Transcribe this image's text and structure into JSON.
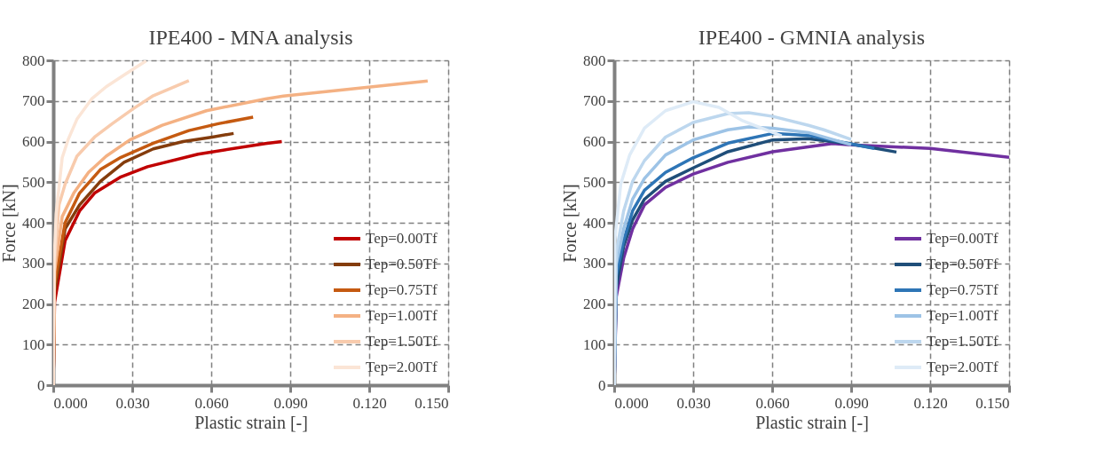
{
  "chart_data": [
    {
      "type": "line",
      "title": "IPE400 - MNA analysis",
      "xlabel": "Plastic strain [-]",
      "ylabel": "Force [kN]",
      "xlim": [
        0,
        0.15
      ],
      "ylim": [
        0,
        800
      ],
      "xticks": [
        {
          "value": 0,
          "label": "0.000"
        },
        {
          "value": 0.03,
          "label": "0.030"
        },
        {
          "value": 0.06,
          "label": "0.060"
        },
        {
          "value": 0.09,
          "label": "0.090"
        },
        {
          "value": 0.12,
          "label": "0.120"
        },
        {
          "value": 0.15,
          "label": "0.150"
        }
      ],
      "yticks": [
        0,
        100,
        200,
        300,
        400,
        500,
        600,
        700,
        800
      ],
      "grid": true,
      "legend": "bottom right",
      "marker": "none",
      "line_style": "solid",
      "series": [
        {
          "name": "Tep=0.00Tf",
          "color": "#c00000",
          "x": [
            0,
            0.0005,
            0.0045,
            0.01,
            0.0157,
            0.0257,
            0.0358,
            0.055,
            0.0806,
            0.0868
          ],
          "values": [
            0,
            204,
            356,
            429,
            473,
            513,
            538,
            569,
            595,
            600
          ]
        },
        {
          "name": "Tep=0.50Tf",
          "color": "#843c0c",
          "x": [
            0,
            0.0005,
            0.0045,
            0.01,
            0.0179,
            0.0269,
            0.038,
            0.0493,
            0.0604,
            0.0685
          ],
          "values": [
            0,
            230,
            385,
            444,
            502,
            549,
            582,
            600,
            611,
            620
          ]
        },
        {
          "name": "Tep=0.75Tf",
          "color": "#c55a11",
          "x": [
            0,
            0.0005,
            0.0045,
            0.01,
            0.0179,
            0.0257,
            0.038,
            0.0515,
            0.0627,
            0.0759
          ],
          "values": [
            0,
            250,
            400,
            473,
            531,
            561,
            596,
            627,
            644,
            660
          ]
        },
        {
          "name": "Tep=1.00Tf",
          "color": "#f4b183",
          "x": [
            0,
            0.0005,
            0.0034,
            0.0078,
            0.0134,
            0.0201,
            0.0291,
            0.0414,
            0.0582,
            0.0806,
            0.0874,
            0.1422
          ],
          "values": [
            0,
            280,
            415,
            473,
            524,
            564,
            604,
            640,
            676,
            705,
            712,
            749
          ]
        },
        {
          "name": "Tep=1.50Tf",
          "color": "#f8cbad",
          "x": [
            0,
            0.0005,
            0.0022,
            0.0045,
            0.009,
            0.0157,
            0.0224,
            0.0302,
            0.038,
            0.0515
          ],
          "values": [
            0,
            300,
            444,
            495,
            564,
            611,
            644,
            680,
            713,
            750
          ]
        },
        {
          "name": "Tep=2.00Tf",
          "color": "#fbe5d6",
          "x": [
            0,
            0.0003,
            0.0011,
            0.0034,
            0.0056,
            0.009,
            0.0146,
            0.0201,
            0.0269,
            0.0353
          ],
          "values": [
            0,
            300,
            422,
            560,
            604,
            655,
            705,
            735,
            764,
            799
          ]
        }
      ]
    },
    {
      "type": "line",
      "title": "IPE400 - GMNIA analysis",
      "xlabel": "Plastic strain [-]",
      "ylabel": "Force [kN]",
      "xlim": [
        0,
        0.15
      ],
      "ylim": [
        0,
        800
      ],
      "xticks": [
        {
          "value": 0,
          "label": "0.000"
        },
        {
          "value": 0.03,
          "label": "0.030"
        },
        {
          "value": 0.06,
          "label": "0.060"
        },
        {
          "value": 0.09,
          "label": "0.090"
        },
        {
          "value": 0.12,
          "label": "0.120"
        },
        {
          "value": 0.15,
          "label": "0.150"
        }
      ],
      "yticks": [
        0,
        100,
        200,
        300,
        400,
        500,
        600,
        700,
        800
      ],
      "grid": true,
      "legend": "bottom right",
      "marker": "none",
      "line_style": "solid",
      "series": [
        {
          "name": "Tep=0.00Tf",
          "color": "#7030a0",
          "x": [
            0,
            0.0008,
            0.0036,
            0.007,
            0.0115,
            0.0195,
            0.03,
            0.0432,
            0.0602,
            0.0829,
            0.09,
            0.12,
            0.15
          ],
          "values": [
            0,
            218,
            313,
            385,
            444,
            487,
            520,
            549,
            575,
            595,
            592,
            583,
            561
          ]
        },
        {
          "name": "Tep=0.50Tf",
          "color": "#1f4e79",
          "x": [
            0,
            0.0008,
            0.0036,
            0.007,
            0.0115,
            0.0195,
            0.03,
            0.0432,
            0.0602,
            0.0738,
            0.09,
            0.1072
          ],
          "values": [
            0,
            240,
            342,
            407,
            458,
            502,
            535,
            575,
            604,
            607,
            594,
            574
          ]
        },
        {
          "name": "Tep=0.75Tf",
          "color": "#2e75b6",
          "x": [
            0,
            0.0008,
            0.0036,
            0.007,
            0.0115,
            0.0195,
            0.03,
            0.0432,
            0.0602,
            0.0738,
            0.09,
            0.0988
          ],
          "values": [
            0,
            269,
            356,
            429,
            480,
            524,
            560,
            596,
            620,
            615,
            594,
            583
          ]
        },
        {
          "name": "Tep=1.00Tf",
          "color": "#9dc3e6",
          "x": [
            0,
            0.0008,
            0.0036,
            0.007,
            0.0115,
            0.0195,
            0.03,
            0.0432,
            0.0511,
            0.0602,
            0.0738,
            0.09
          ],
          "values": [
            0,
            298,
            385,
            458,
            509,
            567,
            604,
            629,
            636,
            633,
            622,
            592
          ]
        },
        {
          "name": "Tep=1.50Tf",
          "color": "#bdd7ee",
          "x": [
            0,
            0.0008,
            0.0036,
            0.007,
            0.0115,
            0.0195,
            0.03,
            0.0432,
            0.0511,
            0.0602,
            0.0738,
            0.0796,
            0.09
          ],
          "values": [
            0,
            327,
            429,
            502,
            553,
            611,
            647,
            669,
            671,
            662,
            640,
            629,
            605
          ]
        },
        {
          "name": "Tep=2.00Tf",
          "color": "#deebf7",
          "x": [
            0,
            0.0002,
            0.0025,
            0.0059,
            0.0115,
            0.0195,
            0.03,
            0.0398,
            0.0489,
            0.0636
          ],
          "values": [
            0,
            356,
            495,
            567,
            633,
            676,
            698,
            684,
            651,
            614
          ]
        }
      ]
    }
  ]
}
